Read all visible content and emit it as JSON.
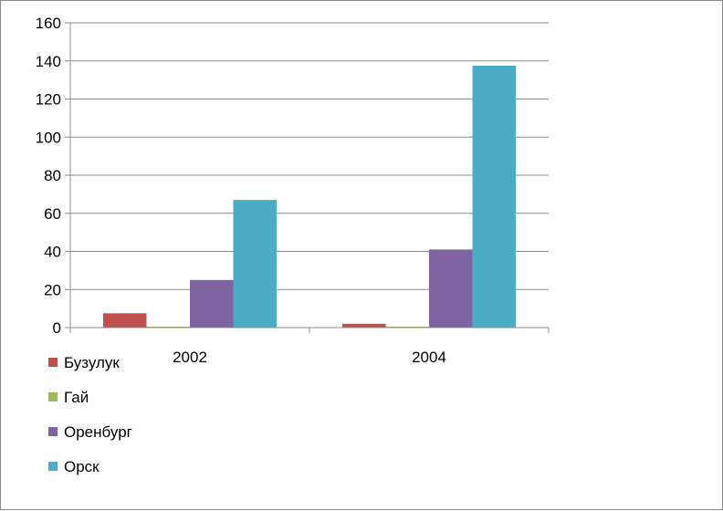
{
  "chart_data": {
    "type": "bar",
    "categories": [
      "2002",
      "2004"
    ],
    "series": [
      {
        "name": "Бузулук",
        "values": [
          7.5,
          2
        ],
        "color": "#c0504d"
      },
      {
        "name": "Гай",
        "values": [
          0.5,
          0.5
        ],
        "color": "#9bbb59"
      },
      {
        "name": "Оренбург",
        "values": [
          25,
          41
        ],
        "color": "#8064a2"
      },
      {
        "name": "Орск",
        "values": [
          67,
          137.5
        ],
        "color": "#4bacc6"
      }
    ],
    "ylim": [
      0,
      160
    ],
    "yticks": [
      "0",
      "20",
      "40",
      "60",
      "80",
      "100",
      "120",
      "140",
      "160"
    ],
    "grid": true,
    "legend": "bottom-left"
  }
}
